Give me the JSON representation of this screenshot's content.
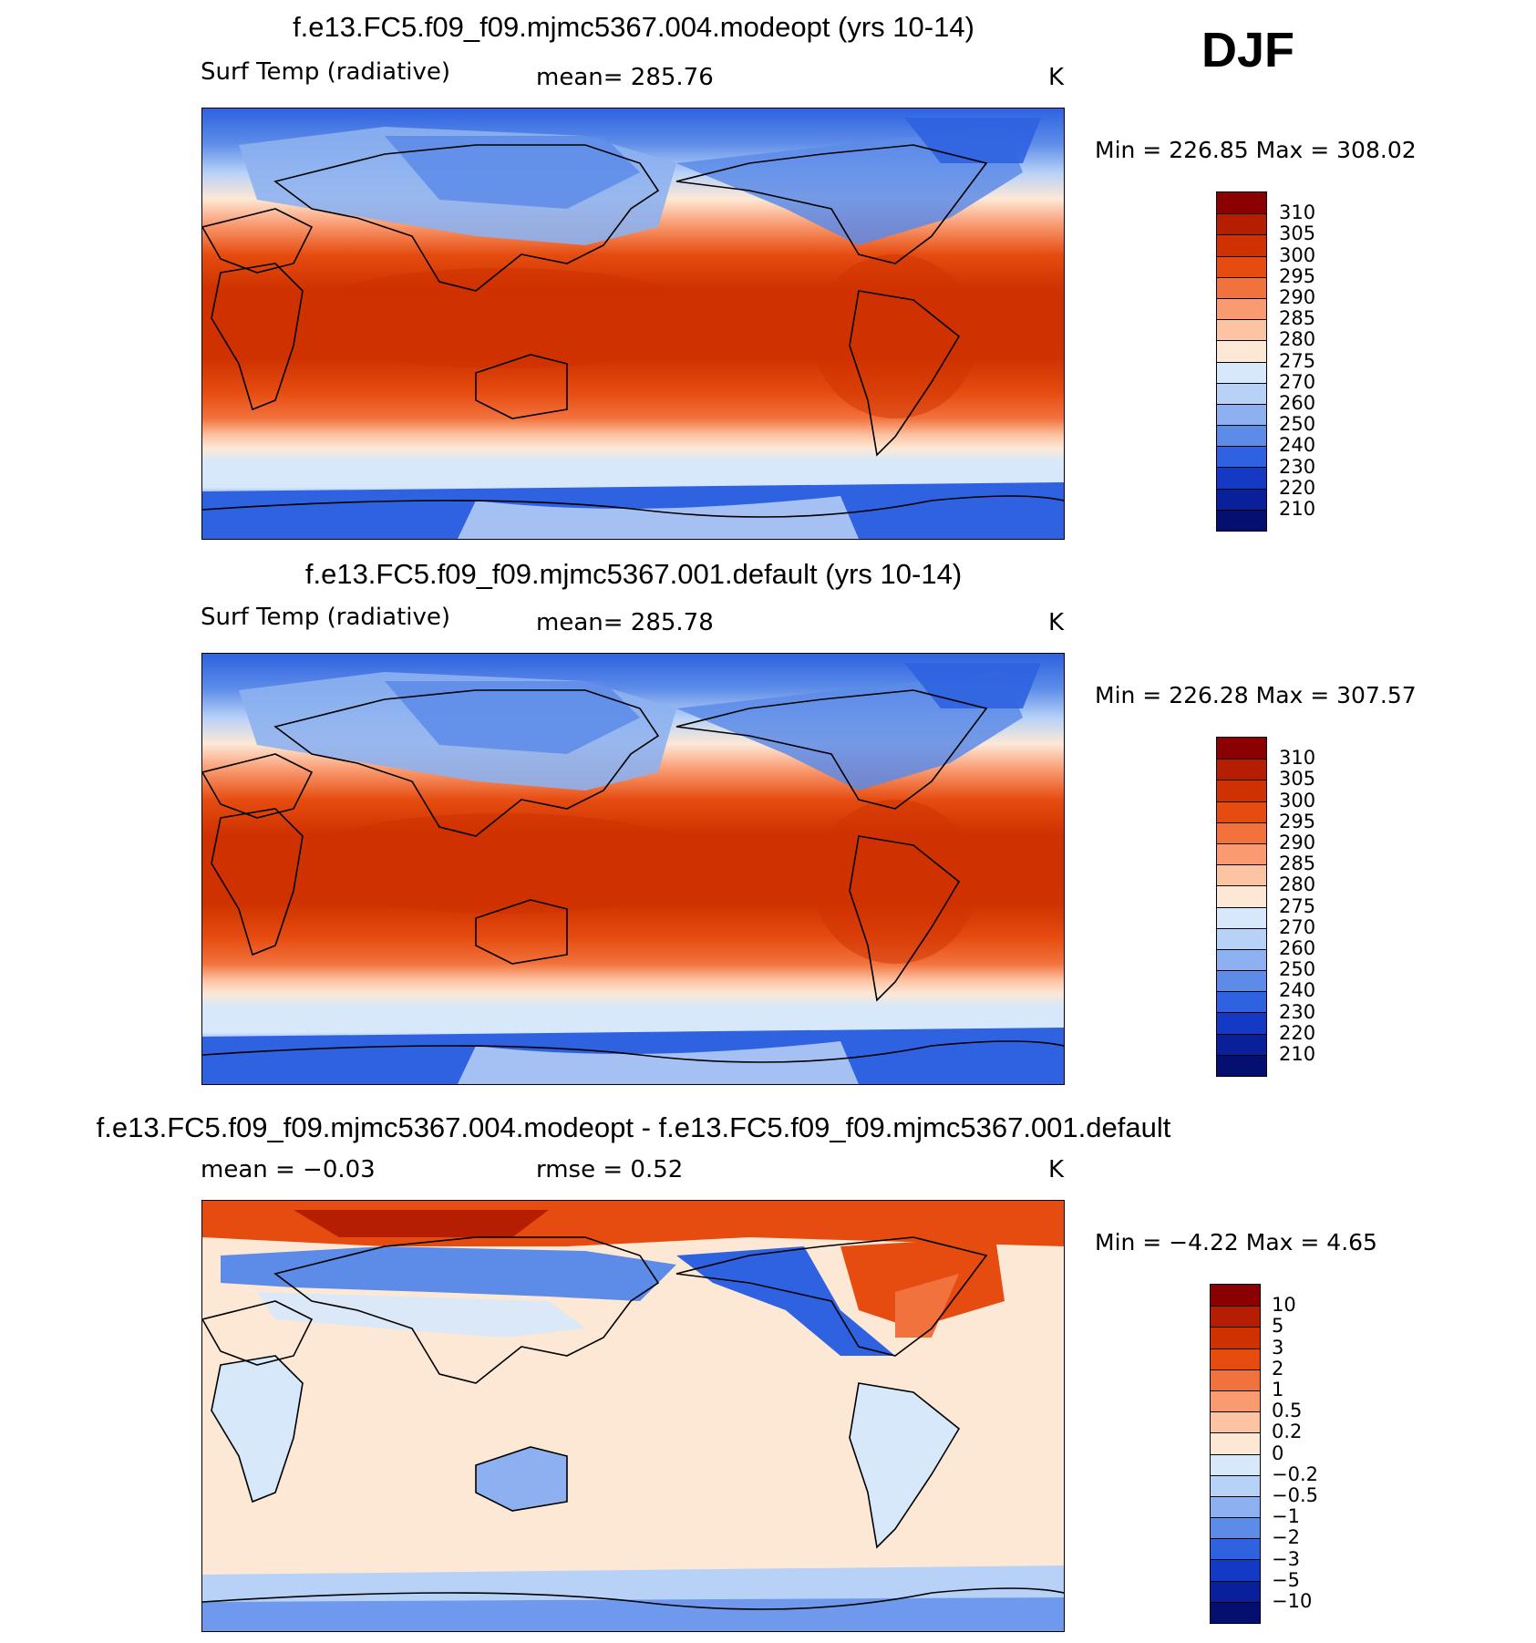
{
  "season": "DJF",
  "panels": [
    {
      "title": "f.e13.FC5.f09_f09.mjmc5367.004.modeopt (yrs 10-14)",
      "left_label": "Surf Temp (radiative)",
      "center_label": "mean= 285.76",
      "unit": "K",
      "minmax": "Min = 226.85 Max = 308.02"
    },
    {
      "title": "f.e13.FC5.f09_f09.mjmc5367.001.default (yrs 10-14)",
      "left_label": "Surf Temp (radiative)",
      "center_label": "mean= 285.78",
      "unit": "K",
      "minmax": "Min = 226.28 Max = 307.57"
    },
    {
      "title": "f.e13.FC5.f09_f09.mjmc5367.004.modeopt - f.e13.FC5.f09_f09.mjmc5367.001.default",
      "left_label": "mean = −0.03",
      "center_label": "rmse = 0.52",
      "unit": "K",
      "minmax": "Min = −4.22 Max = 4.65"
    }
  ],
  "chart_data": [
    {
      "type": "heatmap",
      "title": "f.e13.FC5.f09_f09.mjmc5367.004.modeopt (yrs 10-14)",
      "variable": "Surf Temp (radiative)",
      "units": "K",
      "mean": 285.76,
      "min": 226.85,
      "max": 308.02,
      "colorbar_levels": [
        "310",
        "305",
        "300",
        "295",
        "290",
        "285",
        "280",
        "275",
        "270",
        "260",
        "250",
        "240",
        "230",
        "220",
        "210"
      ],
      "colorbar_colors": [
        "#8b0000",
        "#b51e00",
        "#cf3200",
        "#e64c10",
        "#f2723d",
        "#f99a70",
        "#fdc4a4",
        "#fde8d6",
        "#d7e8fb",
        "#b8d2f7",
        "#8db1f0",
        "#5c8be8",
        "#2f62e0",
        "#1439c5",
        "#0a1f9a",
        "#050f70"
      ]
    },
    {
      "type": "heatmap",
      "title": "f.e13.FC5.f09_f09.mjmc5367.001.default (yrs 10-14)",
      "variable": "Surf Temp (radiative)",
      "units": "K",
      "mean": 285.78,
      "min": 226.28,
      "max": 307.57,
      "colorbar_levels": [
        "310",
        "305",
        "300",
        "295",
        "290",
        "285",
        "280",
        "275",
        "270",
        "260",
        "250",
        "240",
        "230",
        "220",
        "210"
      ],
      "colorbar_colors": [
        "#8b0000",
        "#b51e00",
        "#cf3200",
        "#e64c10",
        "#f2723d",
        "#f99a70",
        "#fdc4a4",
        "#fde8d6",
        "#d7e8fb",
        "#b8d2f7",
        "#8db1f0",
        "#5c8be8",
        "#2f62e0",
        "#1439c5",
        "#0a1f9a",
        "#050f70"
      ]
    },
    {
      "type": "heatmap",
      "title": "f.e13.FC5.f09_f09.mjmc5367.004.modeopt - f.e13.FC5.f09_f09.mjmc5367.001.default",
      "units": "K",
      "mean": -0.03,
      "rmse": 0.52,
      "min": -4.22,
      "max": 4.65,
      "colorbar_levels": [
        "10",
        "5",
        "3",
        "2",
        "1",
        "0.5",
        "0.2",
        "0",
        "−0.2",
        "−0.5",
        "−1",
        "−2",
        "−3",
        "−5",
        "−10"
      ],
      "colorbar_colors": [
        "#8b0000",
        "#b51e00",
        "#cf3200",
        "#e64c10",
        "#f2723d",
        "#f99a70",
        "#fdc4a4",
        "#fde8d6",
        "#d7e8fb",
        "#b8d2f7",
        "#8db1f0",
        "#5c8be8",
        "#2f62e0",
        "#1439c5",
        "#0a1f9a",
        "#050f70"
      ]
    }
  ]
}
